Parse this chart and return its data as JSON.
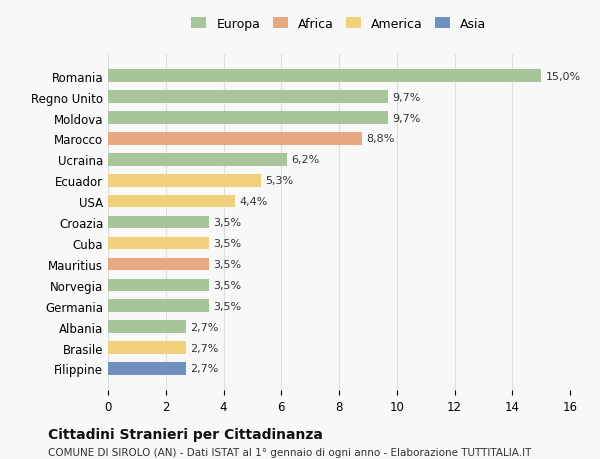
{
  "countries": [
    "Romania",
    "Regno Unito",
    "Moldova",
    "Marocco",
    "Ucraina",
    "Ecuador",
    "USA",
    "Croazia",
    "Cuba",
    "Mauritius",
    "Norvegia",
    "Germania",
    "Albania",
    "Brasile",
    "Filippine"
  ],
  "values": [
    15.0,
    9.7,
    9.7,
    8.8,
    6.2,
    5.3,
    4.4,
    3.5,
    3.5,
    3.5,
    3.5,
    3.5,
    2.7,
    2.7,
    2.7
  ],
  "continents": [
    "Europa",
    "Europa",
    "Europa",
    "Africa",
    "Europa",
    "America",
    "America",
    "Europa",
    "America",
    "Africa",
    "Europa",
    "Europa",
    "Europa",
    "America",
    "Asia"
  ],
  "colors": {
    "Europa": "#a8c49a",
    "Africa": "#e8a882",
    "America": "#f0d07a",
    "Asia": "#7090c0"
  },
  "legend_order": [
    "Europa",
    "Africa",
    "America",
    "Asia"
  ],
  "title": "Cittadini Stranieri per Cittadinanza",
  "subtitle": "COMUNE DI SIROLO (AN) - Dati ISTAT al 1° gennaio di ogni anno - Elaborazione TUTTITALIA.IT",
  "xlim": [
    0,
    16
  ],
  "xticks": [
    0,
    2,
    4,
    6,
    8,
    10,
    12,
    14,
    16
  ],
  "bg_color": "#f8f8f8",
  "grid_color": "#dddddd",
  "bar_height": 0.6
}
